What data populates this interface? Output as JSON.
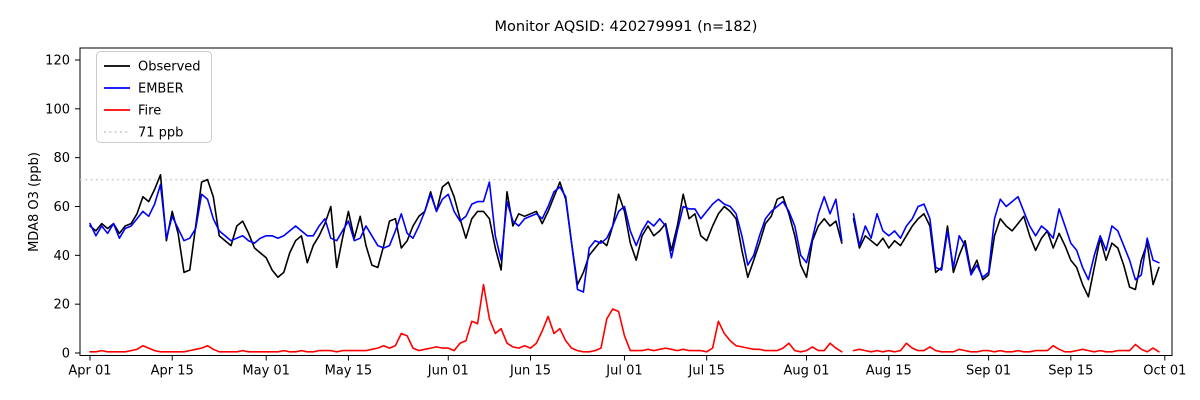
{
  "title": "Monitor AQSID: 420279991 (n=182)",
  "chart_data": {
    "type": "line",
    "title": "Monitor AQSID: 420279991 (n=182)",
    "xlabel": "",
    "ylabel": "MDA8 O3 (ppb)",
    "ylim": [
      -1,
      125
    ],
    "grid": false,
    "legend_position": "upper left",
    "x_tick_labels": [
      "Apr 01",
      "Apr 15",
      "May 01",
      "May 15",
      "Jun 01",
      "Jun 15",
      "Jul 01",
      "Jul 15",
      "Aug 01",
      "Aug 15",
      "Sep 01",
      "Sep 15",
      "Oct 01"
    ],
    "x_tick_days": [
      0,
      14,
      30,
      44,
      61,
      75,
      91,
      105,
      122,
      136,
      153,
      167,
      183
    ],
    "y_ticks": [
      0,
      20,
      40,
      60,
      80,
      100,
      120
    ],
    "x_range_days": 183,
    "n_points": 182,
    "missing_date": "Aug 08",
    "threshold": {
      "value": 71,
      "label": "71 ppb",
      "color": "#cfcfcf",
      "style": "dotted"
    },
    "series": [
      {
        "name": "Observed",
        "color": "#000000",
        "values": [
          52,
          50,
          53,
          51,
          53,
          49,
          52,
          53,
          57,
          64,
          62,
          67,
          73,
          46,
          58,
          49,
          33,
          34,
          52,
          70,
          71,
          64,
          48,
          46,
          44,
          52,
          54,
          49,
          43,
          41,
          39,
          34,
          31,
          33,
          41,
          46,
          48,
          37,
          44,
          48,
          53,
          60,
          35,
          47,
          58,
          47,
          56,
          44,
          36,
          35,
          44,
          54,
          55,
          43,
          46,
          52,
          56,
          58,
          66,
          58,
          68,
          70,
          64,
          55,
          47,
          55,
          58,
          58,
          55,
          43,
          34,
          66,
          52,
          57,
          56,
          57,
          58,
          53,
          58,
          64,
          70,
          63,
          45,
          28,
          33,
          40,
          43,
          46,
          44,
          52,
          65,
          58,
          45,
          38,
          48,
          52,
          48,
          50,
          53,
          42,
          52,
          65,
          55,
          57,
          48,
          46,
          52,
          57,
          60,
          58,
          55,
          42,
          31,
          38,
          45,
          53,
          56,
          63,
          64,
          57,
          48,
          36,
          31,
          46,
          52,
          55,
          52,
          54,
          45,
          null,
          55,
          43,
          48,
          46,
          44,
          47,
          43,
          46,
          44,
          48,
          52,
          55,
          57,
          52,
          33,
          35,
          52,
          33,
          40,
          46,
          33,
          38,
          30,
          32,
          48,
          55,
          52,
          50,
          53,
          56,
          48,
          42,
          47,
          50,
          43,
          49,
          44,
          38,
          35,
          28,
          23,
          35,
          47,
          38,
          45,
          43,
          36,
          27,
          26,
          38,
          45,
          28,
          35
        ]
      },
      {
        "name": "EMBER",
        "color": "#0000ff",
        "values": [
          53,
          48,
          52,
          49,
          53,
          47,
          51,
          52,
          55,
          58,
          56,
          61,
          69,
          47,
          56,
          51,
          46,
          47,
          51,
          65,
          63,
          55,
          50,
          48,
          46,
          47,
          48,
          46,
          45,
          47,
          48,
          48,
          47,
          48,
          50,
          52,
          50,
          48,
          48,
          52,
          55,
          47,
          46,
          50,
          54,
          46,
          47,
          52,
          48,
          44,
          43,
          44,
          50,
          57,
          49,
          47,
          52,
          58,
          65,
          58,
          63,
          65,
          58,
          54,
          56,
          61,
          62,
          62,
          70,
          48,
          38,
          62,
          54,
          52,
          55,
          56,
          57,
          55,
          60,
          66,
          68,
          64,
          45,
          26,
          25,
          43,
          46,
          45,
          47,
          52,
          58,
          60,
          50,
          44,
          50,
          54,
          52,
          55,
          52,
          39,
          50,
          60,
          59,
          59,
          55,
          58,
          61,
          63,
          61,
          60,
          57,
          48,
          36,
          40,
          48,
          55,
          58,
          60,
          62,
          58,
          52,
          40,
          37,
          47,
          57,
          64,
          57,
          63,
          46,
          null,
          57,
          44,
          52,
          47,
          57,
          50,
          48,
          50,
          47,
          52,
          55,
          60,
          61,
          55,
          35,
          34,
          50,
          35,
          48,
          44,
          32,
          36,
          31,
          33,
          55,
          63,
          60,
          62,
          64,
          58,
          52,
          48,
          52,
          50,
          47,
          59,
          52,
          45,
          42,
          35,
          30,
          40,
          48,
          42,
          52,
          50,
          44,
          38,
          30,
          32,
          47,
          38,
          37
        ]
      },
      {
        "name": "Fire",
        "color": "#ff0000",
        "values": [
          0.5,
          0.5,
          1,
          0.5,
          0.5,
          0.5,
          0.5,
          1,
          1.5,
          3,
          2,
          1,
          0.5,
          0.5,
          0.5,
          0.5,
          0.5,
          1,
          1.5,
          2,
          3,
          1.5,
          0.5,
          0.5,
          0.5,
          0.5,
          1,
          0.5,
          0.5,
          0.5,
          0.5,
          0.5,
          0.5,
          1,
          0.5,
          0.5,
          1,
          0.5,
          0.5,
          1,
          1,
          1,
          0.5,
          1,
          1,
          1,
          1,
          1,
          1.5,
          2,
          3,
          2,
          3,
          8,
          7,
          2,
          1,
          1.5,
          2,
          2.5,
          2,
          2,
          1,
          4,
          5,
          13,
          12,
          28,
          14,
          8,
          10,
          4,
          2.5,
          2,
          3,
          2,
          4,
          9,
          15,
          8,
          10,
          5,
          2,
          1,
          0.5,
          0.5,
          1,
          2,
          14,
          18,
          17,
          7,
          1,
          1,
          1,
          1.5,
          1,
          1.5,
          2,
          1.5,
          1,
          1.5,
          1,
          1,
          1,
          0.5,
          2,
          13,
          8,
          5,
          3,
          2.5,
          2,
          1.5,
          1.5,
          1,
          1,
          1,
          2,
          4,
          1,
          0.5,
          1,
          2.5,
          1,
          1,
          4,
          2,
          0.5,
          null,
          1,
          1.5,
          1,
          0.5,
          1,
          0.5,
          1,
          0.5,
          1,
          4,
          2,
          1,
          1,
          2.5,
          1,
          0.5,
          0.5,
          0.5,
          1.5,
          1,
          0.5,
          0.5,
          1,
          1,
          0.5,
          1,
          0.5,
          0.5,
          1,
          0.5,
          0.5,
          1,
          1,
          1,
          3,
          1.5,
          0.5,
          0.5,
          1,
          1.5,
          1,
          0.5,
          1,
          0.5,
          0.5,
          1,
          1,
          1,
          3.5,
          1.5,
          0.5,
          2,
          0.5
        ]
      }
    ],
    "legend": {
      "entries": [
        "Observed",
        "EMBER",
        "Fire",
        "71 ppb"
      ]
    }
  }
}
